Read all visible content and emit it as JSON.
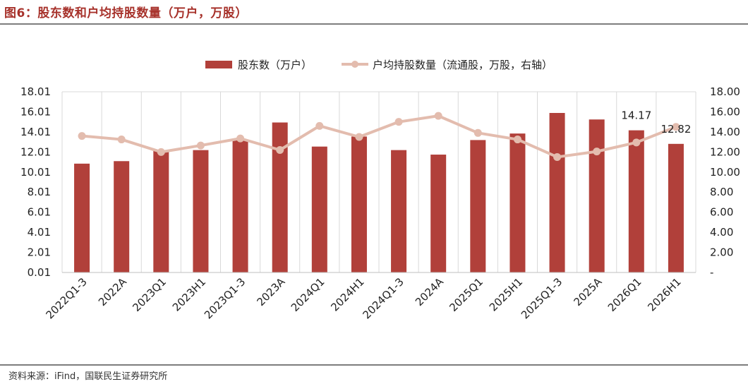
{
  "figure": {
    "title": "图6：股东数和户均持股数量（万户，万股）",
    "source": "资料来源：iFind，国联民生证券研究所"
  },
  "colors": {
    "bar": "#b1403a",
    "line": "#e3bcae",
    "title": "#a7322b",
    "grid": "#d9d9d9"
  },
  "chart_data": {
    "type": "bar",
    "categories": [
      "2022Q1-3",
      "2022A",
      "2023Q1",
      "2023H1",
      "2023Q1-3",
      "2023A",
      "2024Q1",
      "2024H1",
      "2024Q1-3",
      "2024A",
      "2025Q1",
      "2025H1",
      "2025Q1-3",
      "2025A",
      "2026Q1",
      "2026H1"
    ],
    "series": [
      {
        "name": "股东数（万户）",
        "type": "bar",
        "axis": "left",
        "values": [
          10.85,
          11.1,
          12.2,
          12.2,
          13.25,
          14.95,
          12.55,
          13.55,
          12.2,
          11.75,
          13.2,
          13.85,
          15.9,
          15.25,
          14.17,
          12.82
        ]
      },
      {
        "name": "户均持股数量（流通股，万股，右轴）",
        "type": "line",
        "axis": "right",
        "values": [
          13.6,
          13.25,
          12.0,
          12.65,
          13.35,
          12.2,
          14.6,
          13.5,
          15.0,
          15.6,
          13.9,
          13.25,
          11.5,
          12.05,
          12.95,
          14.5
        ]
      }
    ],
    "data_labels": [
      {
        "category": "2026Q1",
        "text": "14.17"
      },
      {
        "category": "2026H1",
        "text": "12.82"
      }
    ],
    "left_axis": {
      "ylim": [
        0.01,
        18.01
      ],
      "ticks": [
        "0.01",
        "2.01",
        "4.01",
        "6.01",
        "8.01",
        "10.01",
        "12.01",
        "14.01",
        "16.01",
        "18.01"
      ]
    },
    "right_axis": {
      "ylim": [
        0,
        18
      ],
      "ticks": [
        "-",
        "2.00",
        "4.00",
        "6.00",
        "8.00",
        "10.00",
        "12.00",
        "14.00",
        "16.00",
        "18.00"
      ]
    },
    "grid": "vertical",
    "legend_position": "top-center"
  }
}
